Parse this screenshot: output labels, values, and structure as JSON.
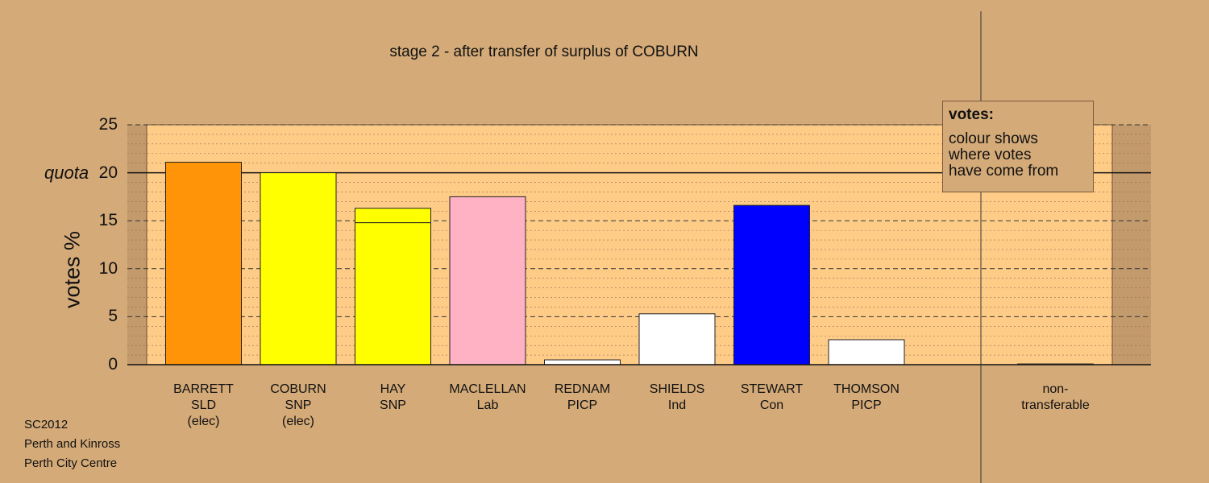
{
  "chart_data": {
    "type": "bar",
    "title": "stage 2 - after transfer of surplus of COBURN",
    "ylabel": "votes %",
    "ylim": [
      0,
      25
    ],
    "yticks": [
      0,
      5,
      10,
      15,
      20,
      25
    ],
    "quota": {
      "label": "quota",
      "value": 20
    },
    "grid": true,
    "categories": [
      {
        "name": "BARRETT",
        "party": "SLD",
        "note": "(elec)"
      },
      {
        "name": "COBURN",
        "party": "SNP",
        "note": "(elec)"
      },
      {
        "name": "HAY",
        "party": "SNP",
        "note": ""
      },
      {
        "name": "MACLELLAN",
        "party": "Lab",
        "note": ""
      },
      {
        "name": "REDNAM",
        "party": "PICP",
        "note": ""
      },
      {
        "name": "SHIELDS",
        "party": "Ind",
        "note": ""
      },
      {
        "name": "STEWART",
        "party": "Con",
        "note": ""
      },
      {
        "name": "THOMSON",
        "party": "PICP",
        "note": ""
      }
    ],
    "values": [
      21.1,
      20.0,
      16.3,
      17.5,
      0.5,
      5.3,
      16.6,
      2.6
    ],
    "segments": [
      [
        {
          "value": 21.1,
          "color": "#ff9408"
        }
      ],
      [
        {
          "value": 20.0,
          "color": "#ffff00"
        }
      ],
      [
        {
          "value": 14.8,
          "color": "#ffff00"
        },
        {
          "value": 1.5,
          "color": "#ffff00"
        }
      ],
      [
        {
          "value": 17.5,
          "color": "#ffb2c4"
        }
      ],
      [
        {
          "value": 0.5,
          "color": "#ffffff"
        }
      ],
      [
        {
          "value": 5.3,
          "color": "#ffffff"
        }
      ],
      [
        {
          "value": 16.6,
          "color": "#0000ff"
        }
      ],
      [
        {
          "value": 2.6,
          "color": "#ffffff"
        }
      ]
    ],
    "non_transferable": {
      "label": [
        "non-",
        "transferable"
      ],
      "value": 0.1
    },
    "legend": {
      "position": "top-right",
      "title": "votes:",
      "lines": [
        "colour shows",
        "where votes",
        "have come from"
      ]
    },
    "colors": {
      "background": "#d4aa78",
      "plot_area": "#ffcc88",
      "outside_area": "#c29a6c"
    }
  },
  "footer": {
    "line1": "SC2012",
    "line2": "Perth and Kinross",
    "line3": "Perth City Centre"
  }
}
